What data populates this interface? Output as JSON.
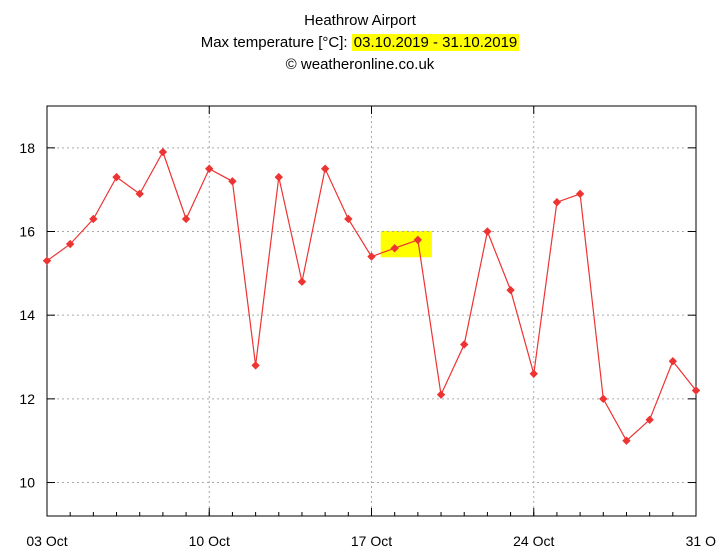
{
  "header": {
    "title": "Heathrow Airport",
    "subtitle_prefix": "Max temperature [°C]: ",
    "subtitle_range": "03.10.2019 - 31.10.2019",
    "credit": "© weatheronline.co.uk"
  },
  "chart_data": {
    "type": "line",
    "title": "Heathrow Airport",
    "subtitle": "Max temperature [°C]: 03.10.2019 - 31.10.2019",
    "xlabel": "",
    "ylabel": "",
    "x": [
      "2019-10-03",
      "2019-10-04",
      "2019-10-05",
      "2019-10-06",
      "2019-10-07",
      "2019-10-08",
      "2019-10-09",
      "2019-10-10",
      "2019-10-11",
      "2019-10-12",
      "2019-10-13",
      "2019-10-14",
      "2019-10-15",
      "2019-10-16",
      "2019-10-17",
      "2019-10-18",
      "2019-10-19",
      "2019-10-20",
      "2019-10-21",
      "2019-10-22",
      "2019-10-23",
      "2019-10-24",
      "2019-10-25",
      "2019-10-26",
      "2019-10-27",
      "2019-10-28",
      "2019-10-29",
      "2019-10-30",
      "2019-10-31"
    ],
    "series": [
      {
        "values": [
          15.3,
          15.7,
          16.3,
          17.3,
          16.9,
          17.9,
          16.3,
          17.5,
          17.2,
          12.8,
          17.3,
          14.8,
          17.5,
          16.3,
          15.4,
          15.6,
          15.8,
          12.1,
          13.3,
          16.0,
          14.6,
          12.6,
          16.7,
          16.9,
          12.0,
          11.0,
          11.5,
          12.9,
          12.2
        ]
      }
    ],
    "x_tick_labels": [
      "03 Oct",
      "10 Oct",
      "17 Oct",
      "24 Oct",
      "31 O"
    ],
    "y_ticks": [
      10,
      12,
      14,
      16,
      18
    ],
    "y_tick_labels": [
      "10",
      "12",
      "14",
      "16",
      "18"
    ],
    "ylim": [
      9.2,
      19.0
    ],
    "xlim": [
      "2019-10-03",
      "2019-10-31"
    ],
    "grid": true,
    "legend": "none",
    "highlight_range": [
      "2019-10-18",
      "2019-10-19"
    ],
    "colors": {
      "line": "#ee3333",
      "marker": "#ee3333",
      "highlight": "#ffff00",
      "grid": "#aaaaaa"
    }
  }
}
